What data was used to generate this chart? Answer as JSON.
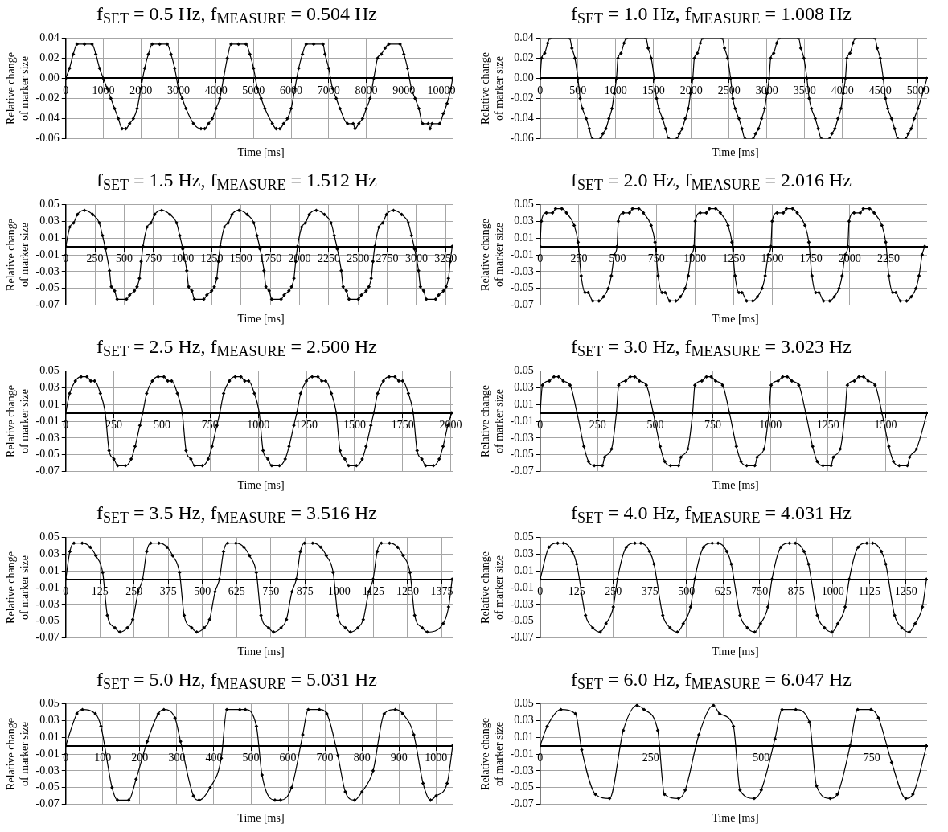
{
  "chart_data": [
    {
      "type": "line",
      "title": "f$_{SET}$ = 0.5 Hz, f$_{MEASURE}$ = 0.504 Hz",
      "xlabel": "Time [ms]",
      "ylabel": "Relative change of marker size",
      "color": "#000000",
      "marker": "diamond",
      "grid": true,
      "xlim": [
        0,
        10300
      ],
      "ylim": [
        -0.06,
        0.04
      ],
      "xticks": [
        0,
        1000,
        2000,
        3000,
        4000,
        5000,
        6000,
        7000,
        8000,
        9000,
        10000
      ],
      "yticks": [
        -0.06,
        -0.04,
        -0.02,
        {
          "value": 0,
          "label": "0.00"
        },
        0.02,
        0.04
      ],
      "x": [
        0,
        100,
        200,
        300,
        500,
        700,
        800,
        900,
        1000,
        1100,
        1200,
        1300,
        1400,
        1500,
        1600,
        1700,
        1800,
        1900,
        2000,
        2100,
        2200,
        2300,
        2500,
        2700,
        2800,
        2900,
        3000,
        3100,
        3200,
        3400,
        3600,
        3700,
        3800,
        3900,
        4000,
        4100,
        4200,
        4300,
        4400,
        4600,
        4800,
        4900,
        5000,
        5100,
        5200,
        5300,
        5500,
        5600,
        5700,
        5800,
        5900,
        6000,
        6100,
        6200,
        6300,
        6400,
        6600,
        6850,
        6900,
        7000,
        7100,
        7200,
        7300,
        7500,
        7650,
        7700,
        7800,
        7900,
        8000,
        8100,
        8200,
        8300,
        8400,
        8500,
        8600,
        8900,
        9000,
        9100,
        9200,
        9300,
        9400,
        9500,
        9650,
        9700,
        9750,
        9950,
        10050,
        10150,
        10250,
        10300
      ],
      "values": [
        0,
        0.01,
        0.024,
        0.034,
        0.034,
        0.034,
        0.024,
        0.01,
        0,
        -0.01,
        -0.02,
        -0.03,
        -0.04,
        -0.05,
        -0.05,
        -0.045,
        -0.04,
        -0.03,
        -0.01,
        0.01,
        0.024,
        0.034,
        0.034,
        0.034,
        0.024,
        0.01,
        -0.01,
        -0.02,
        -0.03,
        -0.045,
        -0.05,
        -0.05,
        -0.045,
        -0.04,
        -0.03,
        -0.02,
        0,
        0.02,
        0.034,
        0.034,
        0.034,
        0.024,
        0.01,
        -0.01,
        -0.02,
        -0.03,
        -0.045,
        -0.05,
        -0.05,
        -0.045,
        -0.04,
        -0.03,
        -0.01,
        0.01,
        0.024,
        0.034,
        0.034,
        0.034,
        0.024,
        0.01,
        -0.01,
        -0.02,
        -0.03,
        -0.045,
        -0.045,
        -0.05,
        -0.045,
        -0.04,
        -0.03,
        -0.02,
        0,
        0.02,
        0.024,
        0.03,
        0.034,
        0.034,
        0.024,
        0.01,
        -0.01,
        -0.02,
        -0.03,
        -0.045,
        -0.045,
        -0.05,
        -0.045,
        -0.045,
        -0.035,
        -0.025,
        -0.01,
        0
      ]
    },
    {
      "type": "line",
      "title": "f$_{SET}$ = 1.0 Hz, f$_{MEASURE}$ = 1.008 Hz",
      "xlabel": "Time [ms]",
      "ylabel": "Relative change of marker size",
      "color": "#000000",
      "marker": "diamond",
      "grid": true,
      "xlim": [
        0,
        5120
      ],
      "ylim": [
        -0.06,
        0.04
      ],
      "xticks": [
        0,
        500,
        1000,
        1500,
        2000,
        2500,
        3000,
        3500,
        4000,
        4500,
        5000
      ],
      "yticks": [
        -0.06,
        -0.04,
        -0.02,
        {
          "value": 0,
          "label": "0.00"
        },
        0.02,
        0.04
      ],
      "x": [
        0,
        20,
        60,
        100,
        130,
        390,
        420,
        460,
        500,
        530,
        560,
        610,
        650,
        690,
        800,
        830,
        870,
        910,
        950,
        980,
        1010,
        1030,
        1070,
        1110,
        1140,
        1400,
        1430,
        1470,
        1510,
        1540,
        1570,
        1620,
        1660,
        1700,
        1810,
        1840,
        1880,
        1920,
        1960,
        1990,
        2020,
        2040,
        2080,
        2120,
        2150,
        2410,
        2440,
        2480,
        2520,
        2550,
        2580,
        2630,
        2670,
        2710,
        2820,
        2850,
        2890,
        2930,
        2970,
        3000,
        3030,
        3050,
        3090,
        3130,
        3160,
        3420,
        3450,
        3490,
        3530,
        3560,
        3590,
        3640,
        3680,
        3720,
        3830,
        3860,
        3900,
        3940,
        3980,
        4010,
        4040,
        4060,
        4100,
        4140,
        4170,
        4430,
        4460,
        4500,
        4540,
        4570,
        4600,
        4650,
        4690,
        4730,
        4840,
        4870,
        4910,
        4950,
        5000,
        5080,
        5120
      ],
      "values": [
        0,
        0.02,
        0.025,
        0.035,
        0.04,
        0.04,
        0.03,
        0.02,
        0,
        -0.02,
        -0.03,
        -0.04,
        -0.05,
        -0.06,
        -0.06,
        -0.055,
        -0.05,
        -0.04,
        -0.03,
        -0.015,
        0,
        0.02,
        0.025,
        0.035,
        0.04,
        0.04,
        0.03,
        0.02,
        0,
        -0.02,
        -0.03,
        -0.04,
        -0.05,
        -0.06,
        -0.06,
        -0.055,
        -0.05,
        -0.04,
        -0.03,
        -0.015,
        0,
        0.02,
        0.025,
        0.035,
        0.04,
        0.04,
        0.03,
        0.02,
        0,
        -0.02,
        -0.03,
        -0.04,
        -0.05,
        -0.06,
        -0.06,
        -0.055,
        -0.05,
        -0.04,
        -0.03,
        -0.015,
        0,
        0.02,
        0.025,
        0.035,
        0.04,
        0.04,
        0.03,
        0.02,
        0,
        -0.02,
        -0.03,
        -0.04,
        -0.05,
        -0.06,
        -0.06,
        -0.055,
        -0.05,
        -0.04,
        -0.03,
        -0.015,
        0,
        0.02,
        0.025,
        0.035,
        0.04,
        0.04,
        0.03,
        0.02,
        0,
        -0.02,
        -0.03,
        -0.04,
        -0.05,
        -0.06,
        -0.06,
        -0.055,
        -0.05,
        -0.04,
        -0.03,
        -0.01,
        0
      ]
    },
    {
      "type": "line",
      "title": "f$_{SET}$ = 1.5 Hz, f$_{MEASURE}$ = 1.512 Hz",
      "xlabel": "Time [ms]",
      "ylabel": "Relative change of marker size",
      "color": "#000000",
      "marker": "diamond",
      "grid": true,
      "xlim": [
        0,
        3310
      ],
      "ylim": [
        -0.07,
        0.05
      ],
      "xticks": [
        0,
        250,
        500,
        750,
        1000,
        1250,
        1500,
        1750,
        2000,
        2250,
        2500,
        2750,
        3000,
        3250
      ],
      "yticks": [
        -0.07,
        -0.05,
        -0.03,
        -0.01,
        0.01,
        0.03,
        0.05
      ],
      "x": [
        0,
        35,
        68,
        100,
        160,
        230,
        287,
        314,
        340,
        374,
        390,
        418,
        440,
        520,
        546,
        587,
        610,
        630,
        645,
        661,
        696,
        729,
        761,
        821,
        891,
        948,
        975,
        1001,
        1035,
        1051,
        1079,
        1101,
        1181,
        1207,
        1248,
        1271,
        1291,
        1306,
        1322,
        1357,
        1390,
        1422,
        1482,
        1552,
        1609,
        1636,
        1662,
        1696,
        1712,
        1740,
        1762,
        1842,
        1868,
        1909,
        1932,
        1952,
        1967,
        1983,
        2018,
        2051,
        2083,
        2143,
        2213,
        2270,
        2297,
        2323,
        2357,
        2373,
        2401,
        2423,
        2503,
        2529,
        2570,
        2593,
        2613,
        2628,
        2644,
        2679,
        2712,
        2744,
        2804,
        2874,
        2931,
        2958,
        2984,
        3018,
        3034,
        3062,
        3084,
        3164,
        3190,
        3231,
        3254,
        3274,
        3289,
        3306
      ],
      "values": [
        0,
        0.023,
        0.028,
        0.038,
        0.043,
        0.038,
        0.028,
        0.013,
        -0.003,
        -0.029,
        -0.048,
        -0.053,
        -0.063,
        -0.063,
        -0.058,
        -0.053,
        -0.048,
        -0.038,
        -0.018,
        0,
        0.023,
        0.028,
        0.038,
        0.043,
        0.038,
        0.028,
        0.013,
        -0.003,
        -0.029,
        -0.048,
        -0.053,
        -0.063,
        -0.063,
        -0.058,
        -0.053,
        -0.048,
        -0.038,
        -0.018,
        0,
        0.023,
        0.028,
        0.038,
        0.043,
        0.038,
        0.028,
        0.013,
        -0.003,
        -0.029,
        -0.048,
        -0.053,
        -0.063,
        -0.063,
        -0.058,
        -0.053,
        -0.048,
        -0.038,
        -0.018,
        0,
        0.023,
        0.028,
        0.038,
        0.043,
        0.038,
        0.028,
        0.013,
        -0.003,
        -0.029,
        -0.048,
        -0.053,
        -0.063,
        -0.063,
        -0.058,
        -0.053,
        -0.048,
        -0.038,
        -0.018,
        0,
        0.023,
        0.028,
        0.038,
        0.043,
        0.038,
        0.028,
        0.013,
        -0.003,
        -0.029,
        -0.048,
        -0.053,
        -0.063,
        -0.063,
        -0.058,
        -0.053,
        -0.048,
        -0.038,
        -0.018,
        0
      ]
    },
    {
      "type": "line",
      "title": "f$_{SET}$ = 2.0 Hz, f$_{MEASURE}$ = 2.016 Hz",
      "xlabel": "Time [ms]",
      "ylabel": "Relative change of marker size",
      "color": "#000000",
      "marker": "diamond",
      "grid": true,
      "xlim": [
        0,
        2500
      ],
      "ylim": [
        -0.07,
        0.05
      ],
      "xticks": [
        0,
        250,
        500,
        750,
        1000,
        1250,
        1500,
        1750,
        2000,
        2250
      ],
      "yticks": [
        -0.07,
        -0.05,
        -0.03,
        -0.01,
        0.01,
        0.03,
        0.05
      ],
      "x": [
        0,
        8,
        40,
        80,
        100,
        140,
        170,
        220,
        245,
        265,
        290,
        310,
        340,
        380,
        410,
        440,
        460,
        480,
        497,
        505,
        537,
        577,
        597,
        637,
        667,
        717,
        742,
        762,
        787,
        807,
        837,
        877,
        907,
        937,
        957,
        977,
        994,
        1002,
        1034,
        1074,
        1094,
        1134,
        1164,
        1214,
        1239,
        1259,
        1284,
        1304,
        1334,
        1374,
        1404,
        1434,
        1454,
        1474,
        1491,
        1499,
        1531,
        1571,
        1591,
        1631,
        1661,
        1711,
        1736,
        1756,
        1781,
        1801,
        1831,
        1871,
        1901,
        1931,
        1951,
        1971,
        1988,
        1996,
        2028,
        2068,
        2088,
        2128,
        2158,
        2208,
        2233,
        2253,
        2278,
        2298,
        2328,
        2368,
        2398,
        2428,
        2448,
        2468,
        2485
      ],
      "values": [
        0,
        0.03,
        0.04,
        0.04,
        0.045,
        0.045,
        0.04,
        0.025,
        0.005,
        -0.035,
        -0.055,
        -0.055,
        -0.065,
        -0.065,
        -0.06,
        -0.05,
        -0.035,
        -0.01,
        0,
        0.03,
        0.04,
        0.04,
        0.045,
        0.045,
        0.04,
        0.025,
        0.005,
        -0.035,
        -0.055,
        -0.055,
        -0.065,
        -0.065,
        -0.06,
        -0.05,
        -0.035,
        -0.01,
        0,
        0.03,
        0.04,
        0.04,
        0.045,
        0.045,
        0.04,
        0.025,
        0.005,
        -0.035,
        -0.055,
        -0.055,
        -0.065,
        -0.065,
        -0.06,
        -0.05,
        -0.035,
        -0.01,
        0,
        0.03,
        0.04,
        0.04,
        0.045,
        0.045,
        0.04,
        0.025,
        0.005,
        -0.035,
        -0.055,
        -0.055,
        -0.065,
        -0.065,
        -0.06,
        -0.05,
        -0.035,
        -0.01,
        0,
        0.03,
        0.04,
        0.04,
        0.045,
        0.045,
        0.04,
        0.025,
        0.005,
        -0.035,
        -0.055,
        -0.055,
        -0.065,
        -0.065,
        -0.06,
        -0.05,
        -0.035,
        -0.01,
        0
      ]
    },
    {
      "type": "line",
      "title": "f$_{SET}$ = 2.5 Hz, f$_{MEASURE}$ = 2.500 Hz",
      "xlabel": "Time [ms]",
      "ylabel": "Relative change of marker size",
      "color": "#000000",
      "marker": "diamond",
      "grid": true,
      "xlim": [
        0,
        2010
      ],
      "ylim": [
        -0.07,
        0.05
      ],
      "xticks": [
        0,
        250,
        500,
        750,
        1000,
        1250,
        1500,
        1750,
        2000
      ],
      "yticks": [
        -0.07,
        -0.05,
        -0.03,
        -0.01,
        0.01,
        0.03,
        0.05
      ],
      "x": [
        0,
        20,
        50,
        80,
        110,
        130,
        150,
        180,
        205,
        225,
        250,
        270,
        310,
        340,
        360,
        385,
        400,
        420,
        450,
        480,
        510,
        530,
        550,
        580,
        605,
        625,
        650,
        670,
        710,
        740,
        760,
        785,
        800,
        820,
        850,
        880,
        910,
        930,
        950,
        980,
        1005,
        1025,
        1050,
        1070,
        1110,
        1140,
        1160,
        1185,
        1200,
        1220,
        1250,
        1280,
        1310,
        1330,
        1350,
        1380,
        1405,
        1425,
        1450,
        1470,
        1510,
        1540,
        1560,
        1585,
        1600,
        1620,
        1650,
        1680,
        1710,
        1730,
        1750,
        1780,
        1805,
        1825,
        1850,
        1870,
        1910,
        1940,
        1960,
        1985,
        2005
      ],
      "values": [
        0,
        0.023,
        0.038,
        0.043,
        0.043,
        0.038,
        0.038,
        0.023,
        0,
        -0.045,
        -0.055,
        -0.063,
        -0.063,
        -0.055,
        -0.04,
        -0.015,
        0,
        0.023,
        0.038,
        0.043,
        0.043,
        0.038,
        0.038,
        0.023,
        0,
        -0.045,
        -0.055,
        -0.063,
        -0.063,
        -0.055,
        -0.04,
        -0.015,
        0,
        0.023,
        0.038,
        0.043,
        0.043,
        0.038,
        0.038,
        0.023,
        0,
        -0.045,
        -0.055,
        -0.063,
        -0.063,
        -0.055,
        -0.04,
        -0.015,
        0,
        0.023,
        0.038,
        0.043,
        0.043,
        0.038,
        0.038,
        0.023,
        0,
        -0.045,
        -0.055,
        -0.063,
        -0.063,
        -0.055,
        -0.04,
        -0.015,
        0,
        0.023,
        0.038,
        0.043,
        0.043,
        0.038,
        0.038,
        0.023,
        0,
        -0.045,
        -0.055,
        -0.063,
        -0.063,
        -0.055,
        -0.04,
        -0.015,
        0
      ]
    },
    {
      "type": "line",
      "title": "f$_{SET}$ = 3.0 Hz, f$_{MEASURE}$ = 3.023 Hz",
      "xlabel": "Time [ms]",
      "ylabel": "Relative change of marker size",
      "color": "#000000",
      "marker": "diamond",
      "grid": true,
      "xlim": [
        0,
        1680
      ],
      "ylim": [
        -0.07,
        0.05
      ],
      "xticks": [
        0,
        250,
        500,
        750,
        1000,
        1250,
        1500
      ],
      "yticks": [
        -0.07,
        -0.05,
        -0.03,
        -0.01,
        0.01,
        0.03,
        0.05
      ],
      "x": [
        0,
        10,
        40,
        60,
        80,
        100,
        130,
        160,
        190,
        210,
        235,
        270,
        280,
        310,
        331,
        341,
        371,
        391,
        411,
        431,
        461,
        491,
        521,
        541,
        566,
        601,
        611,
        641,
        662,
        672,
        702,
        722,
        742,
        762,
        792,
        822,
        852,
        872,
        897,
        932,
        942,
        972,
        993,
        1003,
        1033,
        1053,
        1073,
        1093,
        1123,
        1153,
        1183,
        1203,
        1228,
        1263,
        1273,
        1303,
        1324,
        1334,
        1364,
        1384,
        1404,
        1424,
        1454,
        1484,
        1514,
        1534,
        1559,
        1594,
        1604,
        1634,
        1680
      ],
      "values": [
        0,
        0.033,
        0.038,
        0.043,
        0.043,
        0.038,
        0.033,
        0,
        -0.04,
        -0.058,
        -0.063,
        -0.063,
        -0.053,
        -0.043,
        0,
        0.033,
        0.038,
        0.043,
        0.043,
        0.038,
        0.033,
        0,
        -0.04,
        -0.058,
        -0.063,
        -0.063,
        -0.053,
        -0.043,
        0,
        0.033,
        0.038,
        0.043,
        0.043,
        0.038,
        0.033,
        0,
        -0.04,
        -0.058,
        -0.063,
        -0.063,
        -0.053,
        -0.043,
        0,
        0.033,
        0.038,
        0.043,
        0.043,
        0.038,
        0.033,
        0,
        -0.04,
        -0.058,
        -0.063,
        -0.063,
        -0.053,
        -0.043,
        0,
        0.033,
        0.038,
        0.043,
        0.043,
        0.038,
        0.033,
        0,
        -0.04,
        -0.058,
        -0.063,
        -0.063,
        -0.053,
        -0.043,
        0
      ]
    },
    {
      "type": "line",
      "title": "f$_{SET}$ = 3.5 Hz, f$_{MEASURE}$ = 3.516 Hz",
      "xlabel": "Time [ms]",
      "ylabel": "Relative change of marker size",
      "color": "#000000",
      "marker": "diamond",
      "grid": true,
      "xlim": [
        0,
        1415
      ],
      "ylim": [
        -0.07,
        0.05
      ],
      "xticks": [
        0,
        125,
        250,
        375,
        500,
        625,
        750,
        875,
        1000,
        1125,
        1250,
        1375
      ],
      "yticks": [
        -0.07,
        -0.05,
        -0.03,
        -0.01,
        0.01,
        0.03,
        0.05
      ],
      "x": [
        0,
        15,
        30,
        60,
        90,
        110,
        135,
        152,
        180,
        198,
        225,
        245,
        265,
        281,
        296,
        311,
        341,
        371,
        391,
        416,
        433,
        461,
        479,
        506,
        526,
        546,
        562,
        577,
        592,
        622,
        652,
        672,
        697,
        714,
        742,
        760,
        787,
        807,
        827,
        843,
        858,
        873,
        903,
        933,
        953,
        978,
        995,
        1023,
        1041,
        1068,
        1088,
        1108,
        1124,
        1139,
        1154,
        1184,
        1214,
        1234,
        1259,
        1276,
        1304,
        1322,
        1380,
        1400,
        1413
      ],
      "values": [
        0,
        0.033,
        0.043,
        0.043,
        0.038,
        0.028,
        0.008,
        -0.043,
        -0.058,
        -0.063,
        -0.058,
        -0.048,
        -0.015,
        0,
        0.033,
        0.043,
        0.043,
        0.038,
        0.028,
        0.008,
        -0.043,
        -0.058,
        -0.063,
        -0.058,
        -0.048,
        -0.015,
        0,
        0.033,
        0.043,
        0.043,
        0.038,
        0.028,
        0.008,
        -0.043,
        -0.058,
        -0.063,
        -0.058,
        -0.048,
        -0.015,
        0,
        0.033,
        0.043,
        0.043,
        0.038,
        0.028,
        0.008,
        -0.043,
        -0.058,
        -0.063,
        -0.058,
        -0.048,
        -0.015,
        0,
        0.033,
        0.043,
        0.043,
        0.038,
        0.028,
        0.008,
        -0.043,
        -0.058,
        -0.063,
        -0.053,
        -0.033,
        0
      ]
    },
    {
      "type": "line",
      "title": "f$_{SET}$ = 4.0 Hz, f$_{MEASURE}$ = 4.031 Hz",
      "xlabel": "Time [ms]",
      "ylabel": "Relative change of marker size",
      "color": "#000000",
      "marker": "diamond",
      "grid": true,
      "xlim": [
        0,
        1322
      ],
      "ylim": [
        -0.07,
        0.05
      ],
      "xticks": [
        0,
        125,
        250,
        375,
        500,
        625,
        750,
        875,
        1000,
        1125,
        1250
      ],
      "yticks": [
        -0.07,
        -0.05,
        -0.03,
        -0.01,
        0.01,
        0.03,
        0.05
      ],
      "x": [
        0,
        30,
        60,
        80,
        110,
        125,
        155,
        180,
        205,
        225,
        250,
        264,
        294,
        324,
        344,
        374,
        389,
        419,
        444,
        469,
        489,
        514,
        528,
        558,
        588,
        608,
        638,
        653,
        683,
        708,
        733,
        753,
        778,
        792,
        822,
        852,
        872,
        902,
        917,
        947,
        972,
        997,
        1017,
        1042,
        1056,
        1086,
        1116,
        1136,
        1166,
        1181,
        1211,
        1236,
        1261,
        1281,
        1306,
        1320
      ],
      "values": [
        0,
        0.038,
        0.043,
        0.043,
        0.033,
        0.018,
        -0.043,
        -0.058,
        -0.063,
        -0.053,
        -0.033,
        0,
        0.038,
        0.043,
        0.043,
        0.033,
        0.018,
        -0.043,
        -0.058,
        -0.063,
        -0.053,
        -0.033,
        0,
        0.038,
        0.043,
        0.043,
        0.033,
        0.018,
        -0.043,
        -0.058,
        -0.063,
        -0.053,
        -0.033,
        0,
        0.038,
        0.043,
        0.043,
        0.033,
        0.018,
        -0.043,
        -0.058,
        -0.063,
        -0.053,
        -0.033,
        0,
        0.038,
        0.043,
        0.043,
        0.033,
        0.018,
        -0.043,
        -0.058,
        -0.063,
        -0.053,
        -0.033,
        0
      ]
    },
    {
      "type": "line",
      "title": "f$_{SET}$ = 5.0 Hz, f$_{MEASURE}$ = 5.031 Hz",
      "xlabel": "Time [ms]",
      "ylabel": "Relative change of marker size",
      "color": "#000000",
      "marker": "diamond",
      "grid": true,
      "xlim": [
        0,
        1045
      ],
      "ylim": [
        -0.07,
        0.05
      ],
      "xticks": [
        0,
        100,
        200,
        300,
        400,
        500,
        600,
        700,
        800,
        900,
        1000
      ],
      "yticks": [
        -0.07,
        -0.05,
        -0.03,
        -0.01,
        0.01,
        0.03,
        0.05
      ],
      "x": [
        0,
        30,
        45,
        80,
        95,
        125,
        140,
        170,
        190,
        220,
        250,
        265,
        295,
        310,
        345,
        360,
        390,
        420,
        435,
        470,
        485,
        515,
        530,
        565,
        580,
        610,
        640,
        655,
        685,
        705,
        735,
        755,
        780,
        800,
        830,
        860,
        890,
        910,
        940,
        965,
        985,
        1000,
        1030,
        1045
      ],
      "values": [
        0,
        0.038,
        0.043,
        0.038,
        0.023,
        -0.05,
        -0.065,
        -0.065,
        -0.04,
        0.005,
        0.038,
        0.043,
        0.033,
        0.005,
        -0.06,
        -0.065,
        -0.05,
        -0.015,
        0.043,
        0.043,
        0.043,
        0.023,
        -0.035,
        -0.065,
        -0.065,
        -0.05,
        0.013,
        0.043,
        0.043,
        0.038,
        -0.012,
        -0.055,
        -0.065,
        -0.055,
        -0.03,
        0.038,
        0.043,
        0.038,
        0.013,
        -0.045,
        -0.065,
        -0.06,
        -0.045,
        0
      ]
    },
    {
      "type": "line",
      "title": "f$_{SET}$ = 6.0 Hz, f$_{MEASURE}$ = 6.047 Hz",
      "xlabel": "Time [ms]",
      "ylabel": "Relative change of marker size",
      "color": "#000000",
      "marker": "diamond",
      "grid": "y",
      "xlim": [
        0,
        875
      ],
      "ylim": [
        -0.07,
        0.05
      ],
      "xticks": [
        0,
        250,
        500,
        750
      ],
      "yticks": [
        -0.07,
        -0.05,
        -0.03,
        -0.01,
        0.01,
        0.03,
        0.05
      ],
      "x": [
        0,
        16,
        47,
        80,
        94,
        125,
        157,
        188,
        219,
        235,
        266,
        281,
        313,
        328,
        359,
        392,
        406,
        437,
        452,
        484,
        500,
        531,
        547,
        578,
        609,
        625,
        656,
        672,
        701,
        718,
        748,
        765,
        795,
        827,
        843,
        874
      ],
      "values": [
        0,
        0.023,
        0.043,
        0.038,
        -0.005,
        -0.058,
        -0.063,
        0.018,
        0.048,
        0.043,
        0.018,
        -0.058,
        -0.063,
        -0.053,
        0.013,
        0.048,
        0.038,
        0.023,
        -0.053,
        -0.063,
        -0.053,
        0.008,
        0.043,
        0.043,
        0.028,
        -0.048,
        -0.063,
        -0.058,
        0,
        0.043,
        0.043,
        0.033,
        -0.02,
        -0.063,
        -0.058,
        0
      ]
    }
  ]
}
